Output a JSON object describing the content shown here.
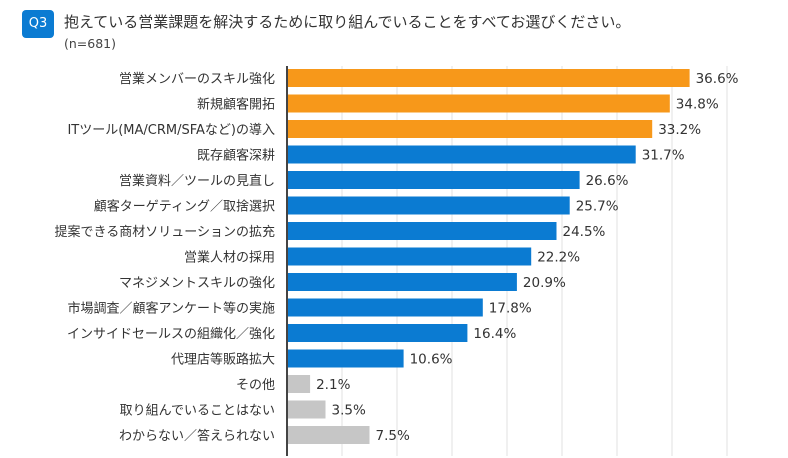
{
  "header": {
    "badge": "Q3",
    "title": "抱えている営業課題を解決するために取り組んでいることをすべてお選びください。",
    "sample": "(n=681)"
  },
  "colors": {
    "highlight": "#f7981a",
    "primary": "#0b7bd2",
    "other": "#c6c6c6",
    "axis": "#444444",
    "grid": "#ececec"
  },
  "chart_data": {
    "type": "bar",
    "orientation": "horizontal",
    "title": "抱えている営業課題を解決するために取り組んでいることをすべてお選びください。",
    "subtitle": "(n=681)",
    "xlabel": "",
    "ylabel": "",
    "xlim": [
      0,
      40
    ],
    "grid": true,
    "grid_step": 5,
    "unit": "%",
    "categories": [
      "営業メンバーのスキル強化",
      "新規顧客開拓",
      "ITツール(MA/CRM/SFAなど)の導入",
      "既存顧客深耕",
      "営業資料／ツールの見直し",
      "顧客ターゲティング／取捨選択",
      "提案できる商材ソリューションの拡充",
      "営業人材の採用",
      "マネジメントスキルの強化",
      "市場調査／顧客アンケート等の実施",
      "インサイドセールスの組織化／強化",
      "代理店等販路拡大",
      "その他",
      "取り組んでいることはない",
      "わからない／答えられない"
    ],
    "values": [
      36.6,
      34.8,
      33.2,
      31.7,
      26.6,
      25.7,
      24.5,
      22.2,
      20.9,
      17.8,
      16.4,
      10.6,
      2.1,
      3.5,
      7.5
    ],
    "value_labels": [
      "36.6%",
      "34.8%",
      "33.2%",
      "31.7%",
      "26.6%",
      "25.7%",
      "24.5%",
      "22.2%",
      "20.9%",
      "17.8%",
      "16.4%",
      "10.6%",
      "2.1%",
      "3.5%",
      "7.5%"
    ],
    "bar_groups": [
      "highlight",
      "highlight",
      "highlight",
      "primary",
      "primary",
      "primary",
      "primary",
      "primary",
      "primary",
      "primary",
      "primary",
      "primary",
      "other",
      "other",
      "other"
    ]
  }
}
